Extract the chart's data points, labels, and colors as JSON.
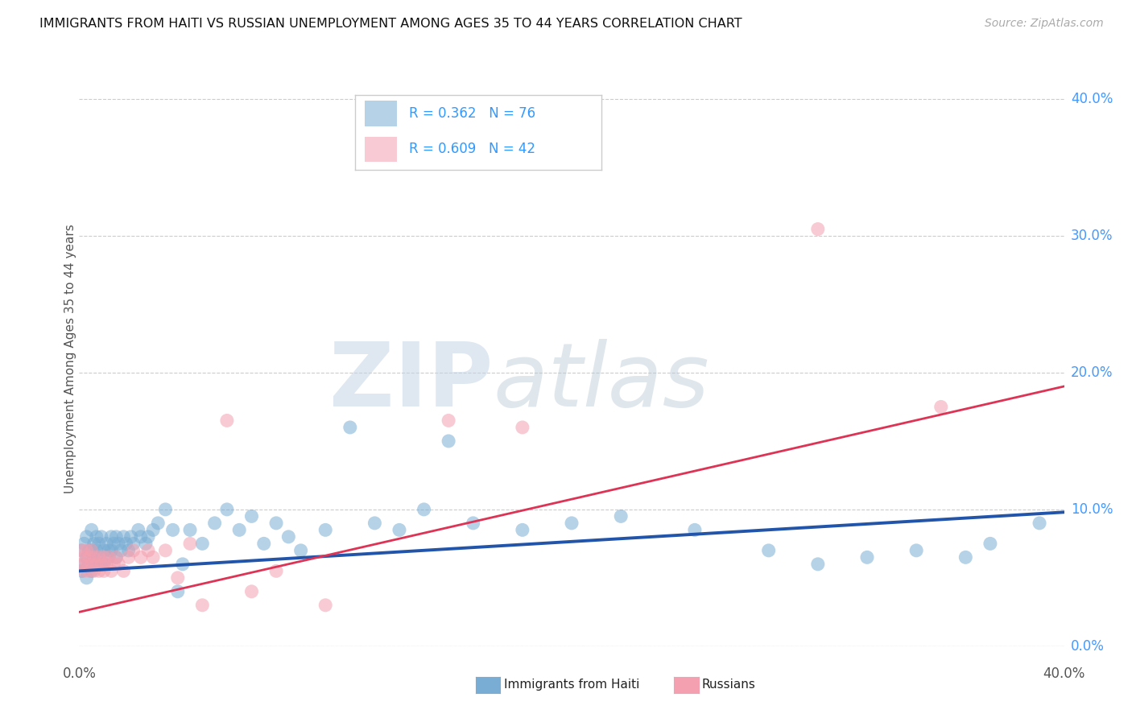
{
  "title": "IMMIGRANTS FROM HAITI VS RUSSIAN UNEMPLOYMENT AMONG AGES 35 TO 44 YEARS CORRELATION CHART",
  "source_text": "Source: ZipAtlas.com",
  "ylabel": "Unemployment Among Ages 35 to 44 years",
  "xlim": [
    0.0,
    0.4
  ],
  "ylim": [
    0.0,
    0.42
  ],
  "yticks": [
    0.0,
    0.1,
    0.2,
    0.3,
    0.4
  ],
  "ytick_labels": [
    "0.0%",
    "10.0%",
    "20.0%",
    "30.0%",
    "40.0%"
  ],
  "grid_color": "#cccccc",
  "background_color": "#ffffff",
  "blue_color": "#7aadd4",
  "pink_color": "#f4a0b0",
  "line_blue_color": "#2255aa",
  "line_pink_color": "#dd3355",
  "legend_text_color": "#3399ff",
  "legend_label_color": "#222222",
  "axis_label_color": "#555555",
  "right_tick_color": "#4499ff",
  "haiti_x": [
    0.001,
    0.001,
    0.002,
    0.002,
    0.003,
    0.003,
    0.003,
    0.004,
    0.004,
    0.005,
    0.005,
    0.005,
    0.006,
    0.006,
    0.007,
    0.007,
    0.007,
    0.008,
    0.008,
    0.009,
    0.009,
    0.01,
    0.01,
    0.011,
    0.012,
    0.012,
    0.013,
    0.013,
    0.014,
    0.015,
    0.015,
    0.016,
    0.017,
    0.018,
    0.019,
    0.02,
    0.021,
    0.022,
    0.024,
    0.025,
    0.027,
    0.028,
    0.03,
    0.032,
    0.035,
    0.038,
    0.04,
    0.042,
    0.045,
    0.05,
    0.055,
    0.06,
    0.065,
    0.07,
    0.075,
    0.08,
    0.085,
    0.09,
    0.1,
    0.11,
    0.12,
    0.13,
    0.14,
    0.15,
    0.16,
    0.18,
    0.2,
    0.22,
    0.25,
    0.28,
    0.3,
    0.32,
    0.34,
    0.36,
    0.37,
    0.39
  ],
  "haiti_y": [
    0.055,
    0.07,
    0.06,
    0.075,
    0.05,
    0.065,
    0.08,
    0.06,
    0.07,
    0.055,
    0.07,
    0.085,
    0.065,
    0.075,
    0.06,
    0.07,
    0.08,
    0.065,
    0.075,
    0.06,
    0.08,
    0.07,
    0.06,
    0.075,
    0.07,
    0.065,
    0.08,
    0.07,
    0.075,
    0.065,
    0.08,
    0.075,
    0.07,
    0.08,
    0.075,
    0.07,
    0.08,
    0.075,
    0.085,
    0.08,
    0.075,
    0.08,
    0.085,
    0.09,
    0.1,
    0.085,
    0.04,
    0.06,
    0.085,
    0.075,
    0.09,
    0.1,
    0.085,
    0.095,
    0.075,
    0.09,
    0.08,
    0.07,
    0.085,
    0.16,
    0.09,
    0.085,
    0.1,
    0.15,
    0.09,
    0.085,
    0.09,
    0.095,
    0.085,
    0.07,
    0.06,
    0.065,
    0.07,
    0.065,
    0.075,
    0.09
  ],
  "russian_x": [
    0.001,
    0.001,
    0.002,
    0.002,
    0.003,
    0.003,
    0.004,
    0.004,
    0.005,
    0.005,
    0.006,
    0.006,
    0.007,
    0.008,
    0.008,
    0.009,
    0.01,
    0.01,
    0.011,
    0.012,
    0.013,
    0.014,
    0.015,
    0.016,
    0.018,
    0.02,
    0.022,
    0.025,
    0.028,
    0.03,
    0.035,
    0.04,
    0.045,
    0.05,
    0.06,
    0.07,
    0.08,
    0.1,
    0.15,
    0.18,
    0.3,
    0.35
  ],
  "russian_y": [
    0.06,
    0.07,
    0.055,
    0.065,
    0.06,
    0.07,
    0.055,
    0.065,
    0.06,
    0.07,
    0.055,
    0.065,
    0.06,
    0.055,
    0.065,
    0.06,
    0.065,
    0.055,
    0.06,
    0.065,
    0.055,
    0.06,
    0.065,
    0.06,
    0.055,
    0.065,
    0.07,
    0.065,
    0.07,
    0.065,
    0.07,
    0.05,
    0.075,
    0.03,
    0.165,
    0.04,
    0.055,
    0.03,
    0.165,
    0.16,
    0.305,
    0.175
  ],
  "blue_trend_x0": 0.0,
  "blue_trend_y0": 0.055,
  "blue_trend_x1": 0.4,
  "blue_trend_y1": 0.098,
  "pink_trend_x0": 0.0,
  "pink_trend_y0": 0.025,
  "pink_trend_x1": 0.4,
  "pink_trend_y1": 0.19
}
